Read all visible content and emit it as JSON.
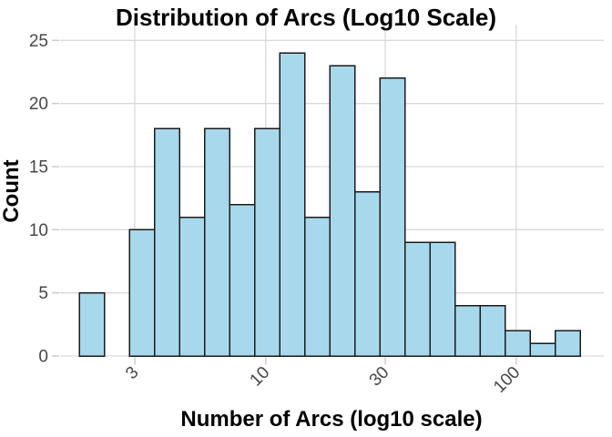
{
  "title": "Distribution of Arcs (Log10 Scale)",
  "chart_data": {
    "type": "bar",
    "subtype": "histogram",
    "title": "Distribution of Arcs (Log10 Scale)",
    "xlabel": "Number of Arcs (log10 scale)",
    "ylabel": "Count",
    "x_scale": "log10",
    "x_tick_values": [
      3,
      10,
      30,
      100
    ],
    "x_tick_labels": [
      "3",
      "10",
      "30",
      "100"
    ],
    "y_tick_values": [
      0,
      5,
      10,
      15,
      20,
      25
    ],
    "y_tick_labels": [
      "0",
      "5",
      "10",
      "15",
      "20",
      "25"
    ],
    "x_range_log10": [
      0.179,
      2.35
    ],
    "ylim": [
      0,
      26.25
    ],
    "bin_edges_log10": [
      0.257,
      0.357,
      0.457,
      0.557,
      0.657,
      0.757,
      0.857,
      0.957,
      1.057,
      1.157,
      1.257,
      1.357,
      1.457,
      1.557,
      1.657,
      1.757,
      1.857,
      1.957,
      2.057,
      2.157,
      2.257
    ],
    "counts": [
      5,
      0,
      10,
      18,
      11,
      18,
      12,
      18,
      24,
      11,
      23,
      13,
      22,
      9,
      9,
      4,
      4,
      2,
      1,
      2
    ],
    "grid": "major-only",
    "legend": "none",
    "x_tick_label_angle_deg": 45
  },
  "colors": {
    "background": "#FFFFFF",
    "bar_fill": "#A8D8EC",
    "bar_stroke": "#1A1A1A",
    "gridline": "#D9D9D9",
    "tick_mark": "#C9C9C9",
    "tick_label": "#474747",
    "title_text": "#000000"
  }
}
